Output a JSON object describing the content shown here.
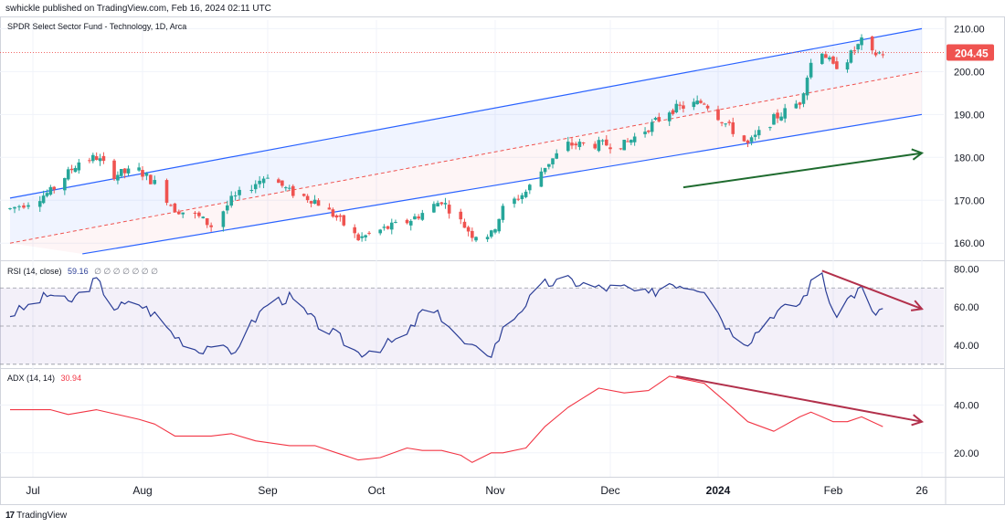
{
  "header": {
    "published": "swhickle published on TradingView.com, Feb 16, 2024 02:11 UTC"
  },
  "price_pane": {
    "title": "SPDR Select Sector Fund - Technology, 1D, Arca"
  },
  "rsi_pane": {
    "label": "RSI (14, close)",
    "value": "59.16",
    "extra": "∅ ∅ ∅ ∅ ∅ ∅ ∅"
  },
  "adx_pane": {
    "label": "ADX (14, 14)",
    "value": "30.94"
  },
  "brand": {
    "icon": "17",
    "name": "TradingView"
  },
  "colors": {
    "up": "#26a69a",
    "down": "#ef5350",
    "channel": "#2962ff",
    "rsi": "#2a3d96",
    "adx": "#f23645",
    "arrow_green": "#1e6b2e",
    "arrow_red": "#b2304b"
  },
  "chart_data": [
    {
      "type": "candlestick",
      "title": "SPDR Select Sector Fund - Technology, 1D, Arca",
      "x_ticks": [
        "Jul",
        "Aug",
        "Sep",
        "Oct",
        "Nov",
        "Dec",
        "2024",
        "Feb",
        "26"
      ],
      "y_ticks": [
        "160.00",
        "170.00",
        "180.00",
        "190.00",
        "200.00",
        "210.00"
      ],
      "ylim": [
        156,
        212
      ],
      "last_price": "204.45",
      "close_path": [
        [
          "Jun 26",
          168
        ],
        [
          "Jul 6",
          172
        ],
        [
          "Jul 14",
          179
        ],
        [
          "Jul 19",
          180
        ],
        [
          "Jul 24",
          176
        ],
        [
          "Jul 31",
          177
        ],
        [
          "Aug 4",
          174
        ],
        [
          "Aug 9",
          168
        ],
        [
          "Aug 15",
          166
        ],
        [
          "Aug 18",
          164
        ],
        [
          "Aug 23",
          170
        ],
        [
          "Aug 29",
          174
        ],
        [
          "Sep 1",
          176
        ],
        [
          "Sep 7",
          172
        ],
        [
          "Sep 14",
          170
        ],
        [
          "Sep 20",
          166
        ],
        [
          "Sep 26",
          161
        ],
        [
          "Oct 2",
          163
        ],
        [
          "Oct 9",
          165
        ],
        [
          "Oct 13",
          167
        ],
        [
          "Oct 18",
          170
        ],
        [
          "Oct 23",
          165
        ],
        [
          "Oct 26",
          162
        ],
        [
          "Oct 31",
          162
        ],
        [
          "Nov 3",
          168
        ],
        [
          "Nov 9",
          172
        ],
        [
          "Nov 14",
          178
        ],
        [
          "Nov 20",
          183
        ],
        [
          "Nov 28",
          183
        ],
        [
          "Dec 5",
          183
        ],
        [
          "Dec 12",
          187
        ],
        [
          "Dec 18",
          191
        ],
        [
          "Dec 28",
          193
        ],
        [
          "Jan 4",
          187
        ],
        [
          "Jan 9",
          183
        ],
        [
          "Jan 16",
          189
        ],
        [
          "Jan 23",
          193
        ],
        [
          "Jan 26",
          202
        ],
        [
          "Jan 29",
          205
        ],
        [
          "Feb 1",
          201
        ],
        [
          "Feb 5",
          203
        ],
        [
          "Feb 9",
          207
        ],
        [
          "Feb 12",
          204
        ],
        [
          "Feb 15",
          204.45
        ]
      ],
      "channel": {
        "upper": [
          [
            "Jun 26",
            170.5
          ],
          [
            "Feb 26",
            210
          ]
        ],
        "mid": [
          [
            "Jun 26",
            160
          ],
          [
            "Feb 26",
            200
          ]
        ],
        "lower": [
          [
            "Jul 15",
            157.5
          ],
          [
            "Feb 26",
            190
          ]
        ]
      },
      "annotation_arrow": [
        [
          "Dec 22",
          173
        ],
        [
          "Feb 26",
          181
        ]
      ]
    },
    {
      "type": "line",
      "name": "RSI (14, close)",
      "ylim": [
        28,
        84
      ],
      "y_ticks": [
        "40.00",
        "60.00",
        "80.00"
      ],
      "bands": [
        30,
        50,
        70
      ],
      "values": [
        [
          "Jun 26",
          56
        ],
        [
          "Jul 6",
          67
        ],
        [
          "Jul 11",
          62
        ],
        [
          "Jul 19",
          74
        ],
        [
          "Jul 24",
          60
        ],
        [
          "Jul 31",
          62
        ],
        [
          "Aug 4",
          56
        ],
        [
          "Aug 9",
          45
        ],
        [
          "Aug 15",
          37
        ],
        [
          "Aug 18",
          41
        ],
        [
          "Aug 23",
          35
        ],
        [
          "Aug 29",
          54
        ],
        [
          "Sep 1",
          62
        ],
        [
          "Sep 7",
          65
        ],
        [
          "Sep 14",
          52
        ],
        [
          "Sep 20",
          45
        ],
        [
          "Sep 26",
          36
        ],
        [
          "Oct 2",
          39
        ],
        [
          "Oct 9",
          45
        ],
        [
          "Oct 13",
          58
        ],
        [
          "Oct 18",
          55
        ],
        [
          "Oct 23",
          42
        ],
        [
          "Oct 26",
          38
        ],
        [
          "Oct 31",
          36
        ],
        [
          "Nov 3",
          48
        ],
        [
          "Nov 9",
          62
        ],
        [
          "Nov 14",
          72
        ],
        [
          "Nov 20",
          74
        ],
        [
          "Nov 28",
          70
        ],
        [
          "Dec 5",
          70
        ],
        [
          "Dec 12",
          66
        ],
        [
          "Dec 18",
          73
        ],
        [
          "Dec 28",
          70
        ],
        [
          "Jan 4",
          48
        ],
        [
          "Jan 9",
          42
        ],
        [
          "Jan 16",
          57
        ],
        [
          "Jan 23",
          62
        ],
        [
          "Jan 26",
          72
        ],
        [
          "Jan 29",
          78
        ],
        [
          "Feb 1",
          55
        ],
        [
          "Feb 5",
          64
        ],
        [
          "Feb 9",
          70
        ],
        [
          "Feb 12",
          56
        ],
        [
          "Feb 15",
          59.16
        ]
      ],
      "annotation_arrow": [
        [
          "Jan 29",
          79
        ],
        [
          "Feb 26",
          59
        ]
      ]
    },
    {
      "type": "line",
      "name": "ADX (14, 14)",
      "ylim": [
        10,
        55
      ],
      "y_ticks": [
        "20.00",
        "40.00"
      ],
      "values": [
        [
          "Jun 26",
          38
        ],
        [
          "Jul 6",
          38
        ],
        [
          "Jul 11",
          36
        ],
        [
          "Jul 19",
          38
        ],
        [
          "Jul 31",
          34
        ],
        [
          "Aug 4",
          32
        ],
        [
          "Aug 9",
          27
        ],
        [
          "Aug 18",
          27
        ],
        [
          "Aug 23",
          28
        ],
        [
          "Aug 29",
          25
        ],
        [
          "Sep 7",
          23
        ],
        [
          "Sep 14",
          23
        ],
        [
          "Sep 20",
          20
        ],
        [
          "Sep 26",
          17
        ],
        [
          "Oct 2",
          18
        ],
        [
          "Oct 9",
          22
        ],
        [
          "Oct 13",
          21
        ],
        [
          "Oct 18",
          21
        ],
        [
          "Oct 23",
          19
        ],
        [
          "Oct 26",
          16
        ],
        [
          "Oct 31",
          20
        ],
        [
          "Nov 3",
          20
        ],
        [
          "Nov 9",
          22
        ],
        [
          "Nov 14",
          31
        ],
        [
          "Nov 20",
          39
        ],
        [
          "Nov 28",
          47
        ],
        [
          "Dec 5",
          45
        ],
        [
          "Dec 12",
          46
        ],
        [
          "Dec 18",
          52
        ],
        [
          "Dec 28",
          49
        ],
        [
          "Jan 4",
          40
        ],
        [
          "Jan 9",
          33
        ],
        [
          "Jan 16",
          29
        ],
        [
          "Jan 23",
          35
        ],
        [
          "Jan 26",
          37
        ],
        [
          "Jan 29",
          35
        ],
        [
          "Feb 1",
          33
        ],
        [
          "Feb 5",
          33
        ],
        [
          "Feb 9",
          35
        ],
        [
          "Feb 15",
          30.94
        ]
      ],
      "annotation_arrow": [
        [
          "Dec 20",
          52
        ],
        [
          "Feb 26",
          33
        ]
      ]
    }
  ]
}
